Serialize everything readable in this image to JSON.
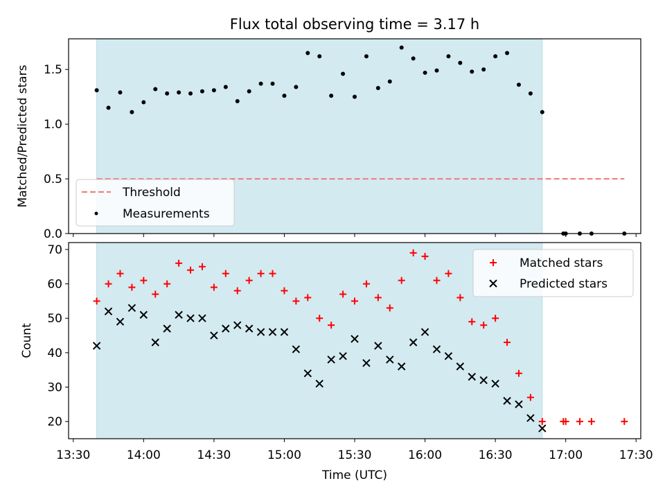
{
  "chart_data": [
    {
      "type": "scatter",
      "title": "Flux total observing time = 3.17 h",
      "xlabel": "",
      "ylabel": "Matched/Predicted stars",
      "xlim": [
        "13:28",
        "17:32"
      ],
      "ylim": [
        0,
        1.78
      ],
      "yticks": [
        0.0,
        0.5,
        1.0,
        1.5
      ],
      "ytick_labels": [
        "0.0",
        "0.5",
        "1.0",
        "1.5"
      ],
      "grid": false,
      "legend_position": "lower-left",
      "shaded_interval": {
        "start": "13:40",
        "end": "16:50",
        "color": "#d3eaf1"
      },
      "threshold": {
        "name": "Threshold",
        "value": 0.5,
        "x_start": "13:40",
        "x_end": "17:25",
        "color": "#f08080"
      },
      "series": [
        {
          "name": "Measurements",
          "color": "#000000",
          "marker": "dot",
          "x": [
            "13:40",
            "13:45",
            "13:50",
            "13:55",
            "14:00",
            "14:05",
            "14:10",
            "14:15",
            "14:20",
            "14:25",
            "14:30",
            "14:35",
            "14:40",
            "14:45",
            "14:50",
            "14:55",
            "15:00",
            "15:05",
            "15:10",
            "15:15",
            "15:20",
            "15:25",
            "15:30",
            "15:35",
            "15:40",
            "15:45",
            "15:50",
            "15:55",
            "16:00",
            "16:05",
            "16:10",
            "16:15",
            "16:20",
            "16:25",
            "16:30",
            "16:35",
            "16:40",
            "16:45",
            "16:50",
            "16:59",
            "17:00",
            "17:06",
            "17:11",
            "17:25"
          ],
          "y": [
            1.31,
            1.15,
            1.29,
            1.11,
            1.2,
            1.32,
            1.28,
            1.29,
            1.28,
            1.3,
            1.31,
            1.34,
            1.21,
            1.3,
            1.37,
            1.37,
            1.26,
            1.34,
            1.65,
            1.62,
            1.26,
            1.46,
            1.25,
            1.62,
            1.33,
            1.39,
            1.7,
            1.6,
            1.47,
            1.49,
            1.62,
            1.56,
            1.48,
            1.5,
            1.62,
            1.65,
            1.36,
            1.28,
            1.11,
            0,
            0,
            0,
            0,
            0
          ]
        }
      ]
    },
    {
      "type": "scatter",
      "title": "",
      "xlabel": "Time (UTC)",
      "ylabel": "Count",
      "xlim": [
        "13:28",
        "17:32"
      ],
      "ylim": [
        15,
        72
      ],
      "xtick_labels": [
        "13:30",
        "14:00",
        "14:30",
        "15:00",
        "15:30",
        "16:00",
        "16:30",
        "17:00",
        "17:30"
      ],
      "yticks": [
        20,
        30,
        40,
        50,
        60,
        70
      ],
      "ytick_labels": [
        "20",
        "30",
        "40",
        "50",
        "60",
        "70"
      ],
      "grid": false,
      "legend_position": "upper-right",
      "shaded_interval": {
        "start": "13:40",
        "end": "16:50",
        "color": "#d3eaf1"
      },
      "series": [
        {
          "name": "Matched stars",
          "color": "#ff0000",
          "marker": "plus",
          "x": [
            "13:40",
            "13:45",
            "13:50",
            "13:55",
            "14:00",
            "14:05",
            "14:10",
            "14:15",
            "14:20",
            "14:25",
            "14:30",
            "14:35",
            "14:40",
            "14:45",
            "14:50",
            "14:55",
            "15:00",
            "15:05",
            "15:10",
            "15:15",
            "15:20",
            "15:25",
            "15:30",
            "15:35",
            "15:40",
            "15:45",
            "15:50",
            "15:55",
            "16:00",
            "16:05",
            "16:10",
            "16:15",
            "16:20",
            "16:25",
            "16:30",
            "16:35",
            "16:40",
            "16:45",
            "16:50",
            "16:59",
            "17:00",
            "17:06",
            "17:11",
            "17:25"
          ],
          "y": [
            55,
            60,
            63,
            59,
            61,
            57,
            60,
            66,
            64,
            65,
            59,
            63,
            58,
            61,
            63,
            63,
            58,
            55,
            56,
            50,
            48,
            57,
            55,
            60,
            56,
            53,
            61,
            69,
            68,
            61,
            63,
            56,
            49,
            48,
            50,
            43,
            34,
            27,
            20,
            20,
            20,
            20,
            20,
            20
          ]
        },
        {
          "name": "Predicted stars",
          "color": "#000000",
          "marker": "x",
          "x": [
            "13:40",
            "13:45",
            "13:50",
            "13:55",
            "14:00",
            "14:05",
            "14:10",
            "14:15",
            "14:20",
            "14:25",
            "14:30",
            "14:35",
            "14:40",
            "14:45",
            "14:50",
            "14:55",
            "15:00",
            "15:05",
            "15:10",
            "15:15",
            "15:20",
            "15:25",
            "15:30",
            "15:35",
            "15:40",
            "15:45",
            "15:50",
            "15:55",
            "16:00",
            "16:05",
            "16:10",
            "16:15",
            "16:20",
            "16:25",
            "16:30",
            "16:35",
            "16:40",
            "16:45",
            "16:50"
          ],
          "y": [
            42,
            52,
            49,
            53,
            51,
            43,
            47,
            51,
            50,
            50,
            45,
            47,
            48,
            47,
            46,
            46,
            46,
            41,
            34,
            31,
            38,
            39,
            44,
            37,
            42,
            38,
            36,
            43,
            46,
            41,
            39,
            36,
            33,
            32,
            31,
            26,
            25,
            21,
            18
          ]
        }
      ]
    }
  ]
}
